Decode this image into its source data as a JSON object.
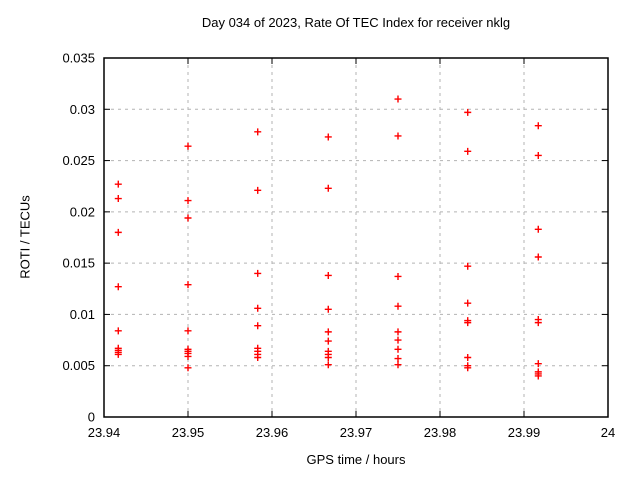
{
  "chart_data": {
    "type": "scatter",
    "title": "Day 034 of 2023, Rate Of TEC Index for receiver nklg",
    "xlabel": "GPS time / hours",
    "ylabel": "ROTI / TECUs",
    "xlim": [
      23.94,
      24
    ],
    "ylim": [
      0,
      0.035
    ],
    "xtick_values": [
      23.94,
      23.95,
      23.96,
      23.97,
      23.98,
      23.99,
      24
    ],
    "xtick_labels": [
      "23.94",
      "23.95",
      "23.96",
      "23.97",
      "23.98",
      "23.99",
      "24"
    ],
    "ytick_values": [
      0,
      0.005,
      0.01,
      0.015,
      0.02,
      0.025,
      0.03,
      0.035
    ],
    "ytick_labels": [
      "0",
      "0.005",
      "0.01",
      "0.015",
      "0.02",
      "0.025",
      "0.03",
      "0.035"
    ],
    "grid": true,
    "legend": "none",
    "marker": "plus",
    "marker_color": "#ff0000",
    "grid_color": "#b3b3b3",
    "axis_color": "#000000",
    "series": [
      {
        "name": "ROTI",
        "points": [
          [
            23.9417,
            0.0227
          ],
          [
            23.9417,
            0.0213
          ],
          [
            23.9417,
            0.018
          ],
          [
            23.9417,
            0.0127
          ],
          [
            23.9417,
            0.0084
          ],
          [
            23.9417,
            0.0067
          ],
          [
            23.9417,
            0.0065
          ],
          [
            23.9417,
            0.0063
          ],
          [
            23.9417,
            0.0061
          ],
          [
            23.95,
            0.0264
          ],
          [
            23.95,
            0.0211
          ],
          [
            23.95,
            0.0194
          ],
          [
            23.95,
            0.0129
          ],
          [
            23.95,
            0.0084
          ],
          [
            23.95,
            0.0066
          ],
          [
            23.95,
            0.0064
          ],
          [
            23.95,
            0.0062
          ],
          [
            23.95,
            0.0059
          ],
          [
            23.95,
            0.0048
          ],
          [
            23.9583,
            0.0278
          ],
          [
            23.9583,
            0.0221
          ],
          [
            23.9583,
            0.014
          ],
          [
            23.9583,
            0.0106
          ],
          [
            23.9583,
            0.0089
          ],
          [
            23.9583,
            0.0067
          ],
          [
            23.9583,
            0.0064
          ],
          [
            23.9583,
            0.0061
          ],
          [
            23.9583,
            0.0058
          ],
          [
            23.9667,
            0.0273
          ],
          [
            23.9667,
            0.0223
          ],
          [
            23.9667,
            0.0138
          ],
          [
            23.9667,
            0.0105
          ],
          [
            23.9667,
            0.0083
          ],
          [
            23.9667,
            0.0074
          ],
          [
            23.9667,
            0.0064
          ],
          [
            23.9667,
            0.0061
          ],
          [
            23.9667,
            0.0058
          ],
          [
            23.9667,
            0.0051
          ],
          [
            23.975,
            0.031
          ],
          [
            23.975,
            0.0274
          ],
          [
            23.975,
            0.0137
          ],
          [
            23.975,
            0.0108
          ],
          [
            23.975,
            0.0083
          ],
          [
            23.975,
            0.0075
          ],
          [
            23.975,
            0.0066
          ],
          [
            23.975,
            0.0057
          ],
          [
            23.975,
            0.0051
          ],
          [
            23.9833,
            0.0297
          ],
          [
            23.9833,
            0.0259
          ],
          [
            23.9833,
            0.0147
          ],
          [
            23.9833,
            0.0111
          ],
          [
            23.9833,
            0.0094
          ],
          [
            23.9833,
            0.0092
          ],
          [
            23.9833,
            0.0058
          ],
          [
            23.9833,
            0.005
          ],
          [
            23.9833,
            0.0048
          ],
          [
            23.9917,
            0.0284
          ],
          [
            23.9917,
            0.0255
          ],
          [
            23.9917,
            0.0183
          ],
          [
            23.9917,
            0.0156
          ],
          [
            23.9917,
            0.0095
          ],
          [
            23.9917,
            0.0092
          ],
          [
            23.9917,
            0.0052
          ],
          [
            23.9917,
            0.0044
          ],
          [
            23.9917,
            0.0042
          ],
          [
            23.9917,
            0.004
          ]
        ]
      }
    ]
  }
}
